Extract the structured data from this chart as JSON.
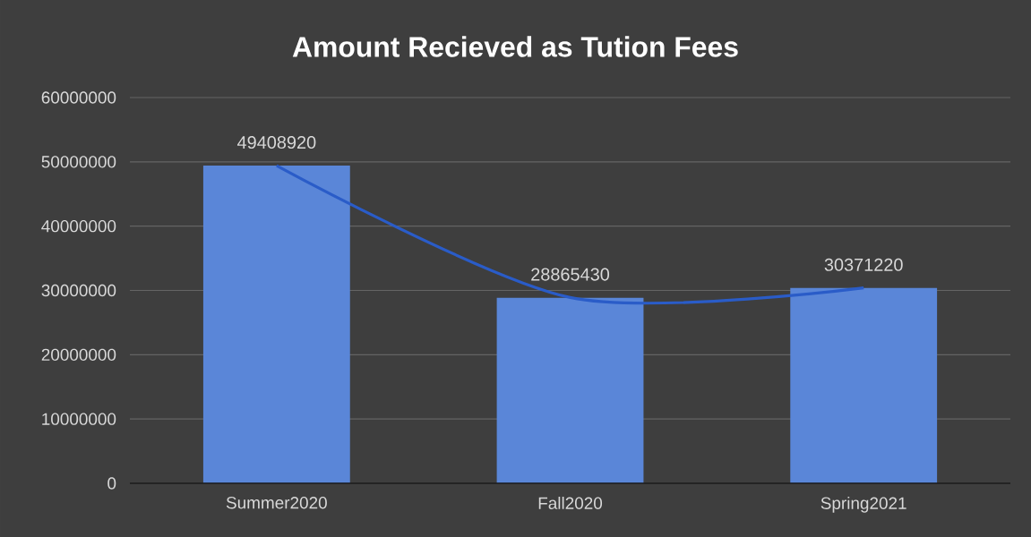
{
  "chart_data": {
    "type": "bar",
    "title": "Amount Recieved as Tution Fees",
    "categories": [
      "Summer2020",
      "Fall2020",
      "Spring2021"
    ],
    "series": [
      {
        "color": "#5a86d8",
        "values": [
          49408920,
          28865430,
          30371220
        ],
        "value_labels": [
          "49408920",
          "28865430",
          "30371220"
        ]
      },
      {
        "type": "line",
        "color": "#2a5cc8",
        "values": [
          49400000,
          28900000,
          30400000
        ],
        "marker": "none"
      }
    ],
    "ylim": [
      0,
      60000000
    ],
    "yticks": [
      0,
      10000000,
      20000000,
      30000000,
      40000000,
      50000000,
      60000000
    ],
    "grid": "y"
  }
}
